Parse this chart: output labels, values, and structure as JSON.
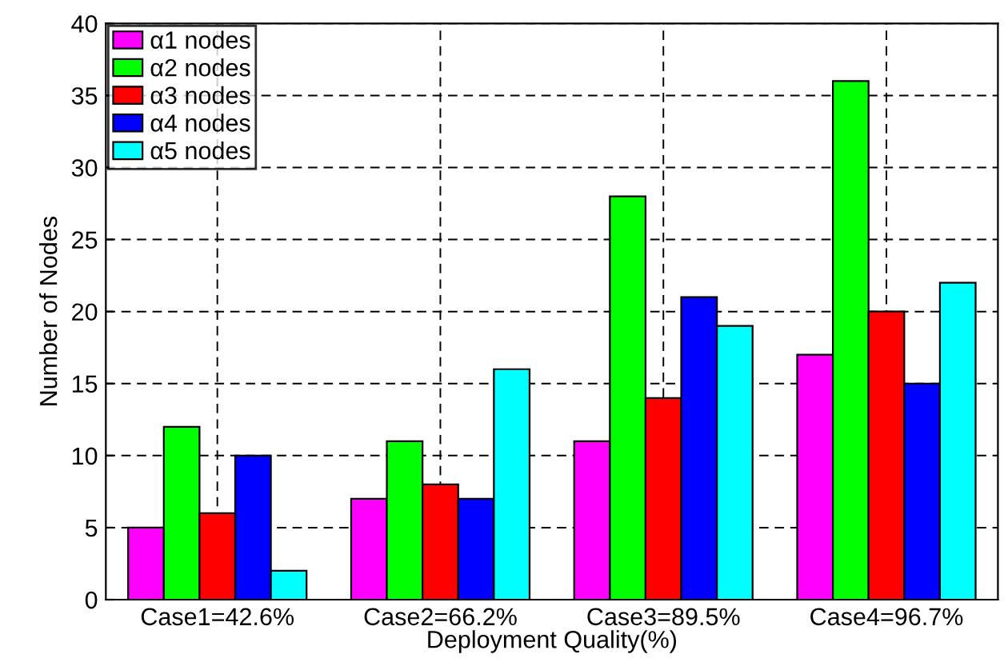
{
  "chart_data": {
    "type": "bar",
    "xlabel": "Deployment Quality(%)",
    "ylabel": "Number of Nodes",
    "categories": [
      "Case1=42.6%",
      "Case2=66.2%",
      "Case3=89.5%",
      "Case4=96.7%"
    ],
    "series": [
      {
        "name": "α1 nodes",
        "color": "#ff00ff",
        "values": [
          5,
          7,
          11,
          17
        ]
      },
      {
        "name": "α2 nodes",
        "color": "#00ff00",
        "values": [
          12,
          11,
          28,
          36
        ]
      },
      {
        "name": "α3 nodes",
        "color": "#ff0000",
        "values": [
          6,
          8,
          14,
          20
        ]
      },
      {
        "name": "α4 nodes",
        "color": "#0000ff",
        "values": [
          10,
          7,
          21,
          15
        ]
      },
      {
        "name": "α5 nodes",
        "color": "#00ffff",
        "values": [
          2,
          16,
          19,
          22
        ]
      }
    ],
    "ylim": [
      0,
      40
    ],
    "yticks": [
      0,
      5,
      10,
      15,
      20,
      25,
      30,
      35,
      40
    ],
    "grid": true,
    "legend": "top left"
  }
}
